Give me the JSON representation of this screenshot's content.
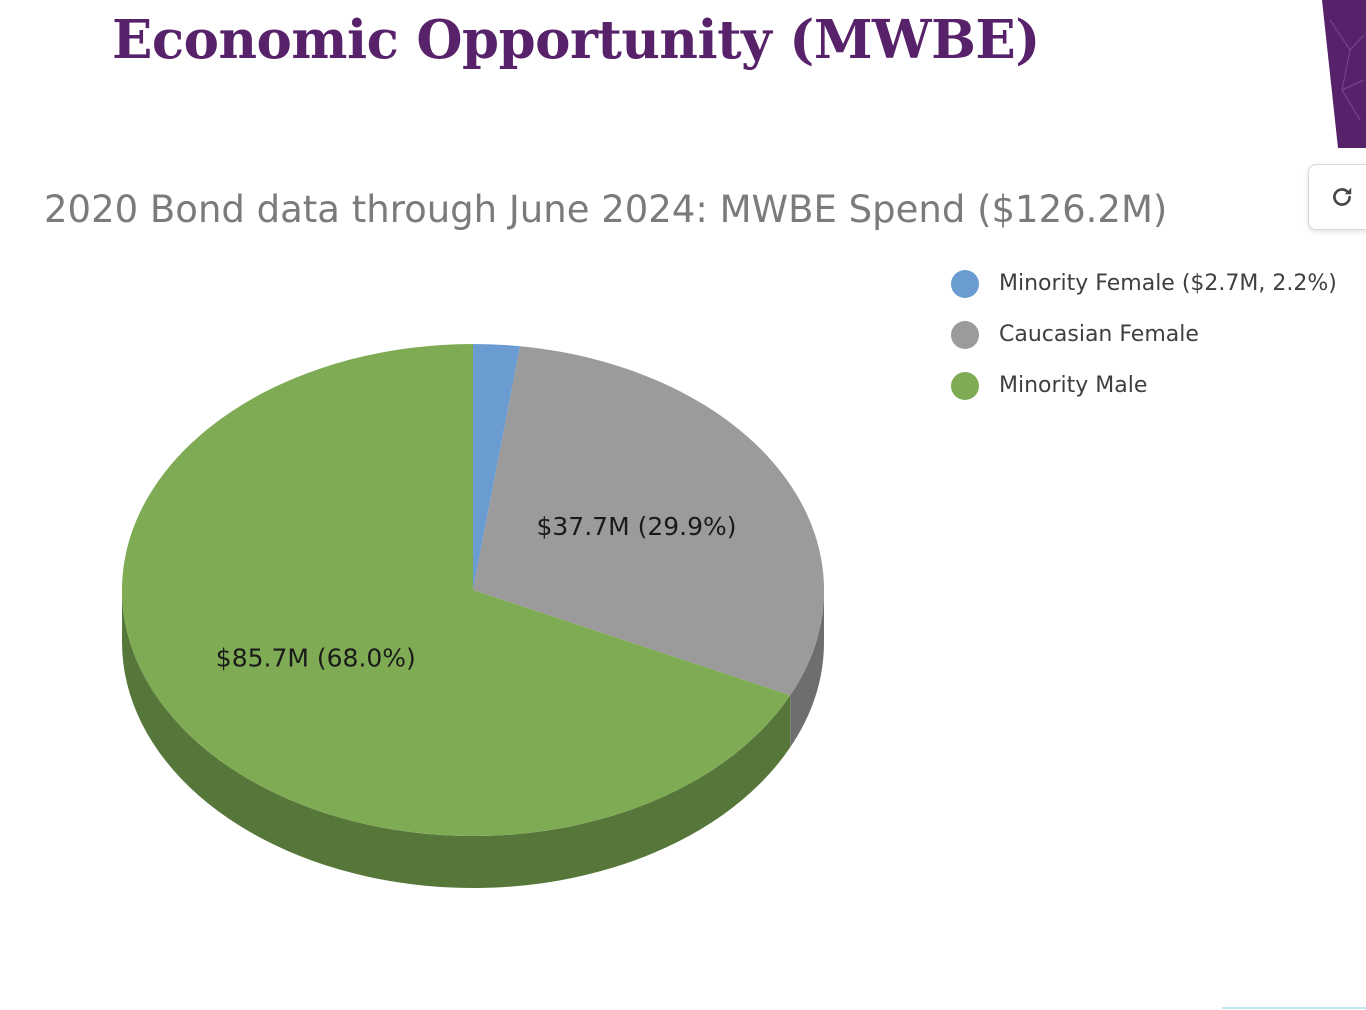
{
  "slide": {
    "title": "Economic Opportunity (MWBE)"
  },
  "toolbar": {
    "refresh_icon": "refresh-icon"
  },
  "colors": {
    "title": "#58226a",
    "minority_female": "#6a9bd1",
    "caucasian_female": "#9b9b9b",
    "minority_male": "#7fab55",
    "minority_female_side": "#4d7ab0",
    "caucasian_female_side": "#6e6e6e",
    "minority_male_side": "#57773a"
  },
  "chart_data": {
    "type": "pie",
    "title": "2020 Bond data through June 2024: MWBE Spend ($126.2M)",
    "legend_position": "top-right",
    "slices": [
      {
        "label": "Minority Female ($2.7M, 2.2%)",
        "value": 2.7,
        "percent": 2.2,
        "data_label": "",
        "color": "#6a9bd1",
        "side_color": "#4d7ab0"
      },
      {
        "label": "Caucasian Female",
        "value": 37.7,
        "percent": 29.9,
        "data_label": "$37.7M (29.9%)",
        "color": "#9b9b9b",
        "side_color": "#6e6e6e"
      },
      {
        "label": "Minority Male",
        "value": 85.7,
        "percent": 68.0,
        "data_label": "$85.7M (68.0%)",
        "color": "#7fab55",
        "side_color": "#57773a"
      }
    ]
  }
}
